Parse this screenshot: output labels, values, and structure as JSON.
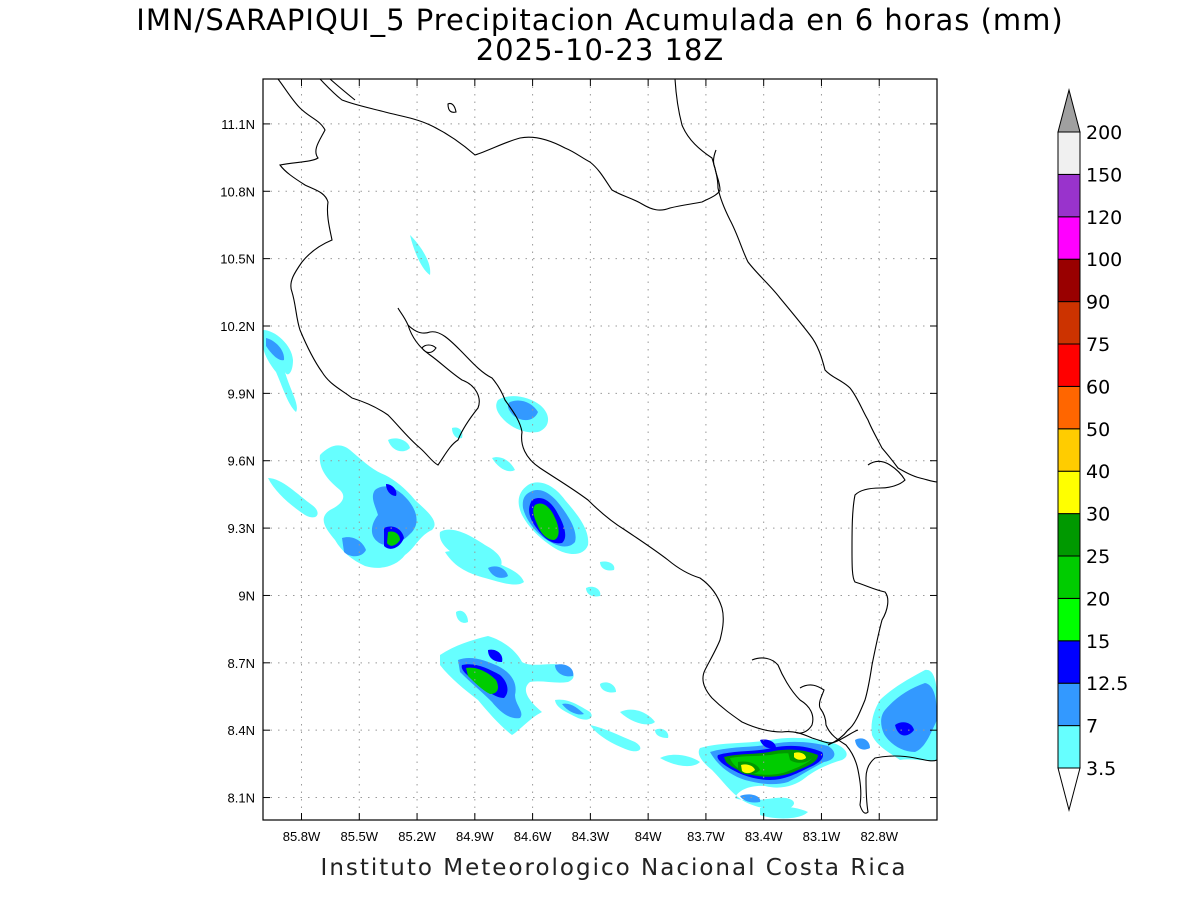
{
  "title": {
    "line1": "IMN/SARAPIQUI_5 Precipitacion Acumulada en 6 horas (mm)",
    "line2": "2025-10-23 18Z"
  },
  "footer": "Instituto Meteorologico Nacional Costa Rica",
  "map": {
    "lon_range": [
      -86.0,
      -82.5
    ],
    "lat_range": [
      8.0,
      11.3
    ],
    "lon_ticks": [
      {
        "value": -85.8,
        "label": "85.8W"
      },
      {
        "value": -85.5,
        "label": "85.5W"
      },
      {
        "value": -85.2,
        "label": "85.2W"
      },
      {
        "value": -84.9,
        "label": "84.9W"
      },
      {
        "value": -84.6,
        "label": "84.6W"
      },
      {
        "value": -84.3,
        "label": "84.3W"
      },
      {
        "value": -84.0,
        "label": "84W"
      },
      {
        "value": -83.7,
        "label": "83.7W"
      },
      {
        "value": -83.4,
        "label": "83.4W"
      },
      {
        "value": -83.1,
        "label": "83.1W"
      },
      {
        "value": -82.8,
        "label": "82.8W"
      }
    ],
    "lat_ticks": [
      {
        "value": 8.1,
        "label": "8.1N"
      },
      {
        "value": 8.4,
        "label": "8.4N"
      },
      {
        "value": 8.7,
        "label": "8.7N"
      },
      {
        "value": 9.0,
        "label": "9N"
      },
      {
        "value": 9.3,
        "label": "9.3N"
      },
      {
        "value": 9.6,
        "label": "9.6N"
      },
      {
        "value": 9.9,
        "label": "9.9N"
      },
      {
        "value": 10.2,
        "label": "10.2N"
      },
      {
        "value": 10.5,
        "label": "10.5N"
      },
      {
        "value": 10.8,
        "label": "10.8N"
      },
      {
        "value": 11.1,
        "label": "11.1N"
      }
    ],
    "grid": true
  },
  "colorbar": {
    "unit": "mm",
    "over_color": "#a0a0a0",
    "under_color": "#ffffff",
    "levels": [
      {
        "label": "3.5",
        "color": "#66ffff"
      },
      {
        "label": "7",
        "color": "#3399ff"
      },
      {
        "label": "12.5",
        "color": "#0000ff"
      },
      {
        "label": "15",
        "color": "#00ff00"
      },
      {
        "label": "20",
        "color": "#00cc00"
      },
      {
        "label": "25",
        "color": "#009900"
      },
      {
        "label": "30",
        "color": "#ffff00"
      },
      {
        "label": "40",
        "color": "#ffcc00"
      },
      {
        "label": "50",
        "color": "#ff6600"
      },
      {
        "label": "60",
        "color": "#ff0000"
      },
      {
        "label": "75",
        "color": "#cc3300"
      },
      {
        "label": "90",
        "color": "#990000"
      },
      {
        "label": "100",
        "color": "#ff00ff"
      },
      {
        "label": "120",
        "color": "#9933cc"
      },
      {
        "label": "150",
        "color": "#f0f0f0"
      },
      {
        "label": "200",
        "color": ""
      }
    ]
  },
  "precip_cells": [
    {
      "lon": -85.9,
      "lat": 10.14,
      "level": 0
    },
    {
      "lon": -85.54,
      "lat": 9.6,
      "level": 0
    },
    {
      "lon": -85.38,
      "lat": 9.38,
      "level": 1
    },
    {
      "lon": -85.3,
      "lat": 9.24,
      "level": 3
    },
    {
      "lon": -85.47,
      "lat": 9.22,
      "level": 1
    },
    {
      "lon": -84.93,
      "lat": 9.2,
      "level": 0
    },
    {
      "lon": -84.62,
      "lat": 9.8,
      "level": 1
    },
    {
      "lon": -84.56,
      "lat": 9.34,
      "level": 4
    },
    {
      "lon": -84.88,
      "lat": 8.67,
      "level": 4
    },
    {
      "lon": -84.51,
      "lat": 8.66,
      "level": 0
    },
    {
      "lon": -84.12,
      "lat": 8.47,
      "level": 0
    },
    {
      "lon": -83.44,
      "lat": 8.25,
      "level": 6
    },
    {
      "lon": -83.25,
      "lat": 8.31,
      "level": 6
    },
    {
      "lon": -82.7,
      "lat": 8.41,
      "level": 2
    }
  ]
}
